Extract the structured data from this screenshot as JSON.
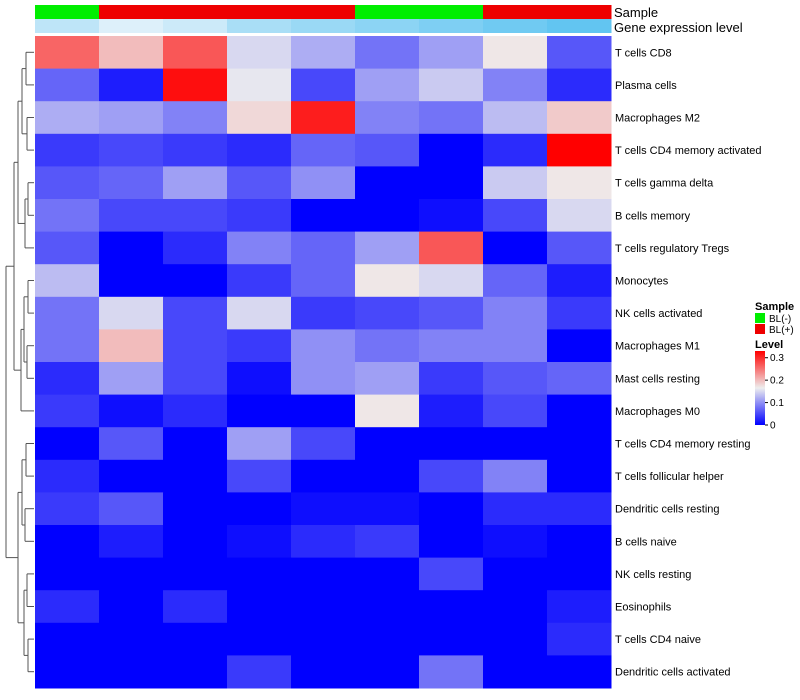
{
  "chart_data": {
    "type": "heatmap",
    "annotation_labels": [
      "Sample",
      "Gene expression level"
    ],
    "sample_group": [
      "BL(-)",
      "BL(+)",
      "BL(+)",
      "BL(+)",
      "BL(+)",
      "BL(-)",
      "BL(-)",
      "BL(+)",
      "BL(+)"
    ],
    "expression_level": [
      0.3,
      0.08,
      0.2,
      0.45,
      0.55,
      0.65,
      0.75,
      0.85,
      0.95
    ],
    "rows": [
      "T cells CD8",
      "Plasma cells",
      "Macrophages M2",
      "T cells CD4 memory activated",
      "T cells gamma delta",
      "B cells memory",
      "T cells regulatory  Tregs",
      "Monocytes",
      "NK cells activated",
      "Macrophages M1",
      "Mast cells resting",
      "Macrophages M0",
      "T cells CD4 memory resting",
      "T cells follicular helper",
      "Dendritic cells resting",
      "B cells naive",
      "NK cells resting",
      "Eosinophils",
      "T cells CD4 naive",
      "Dendritic cells activated"
    ],
    "values": [
      [
        0.26,
        0.2,
        0.27,
        0.15,
        0.12,
        0.08,
        0.11,
        0.17,
        0.06
      ],
      [
        0.07,
        0.02,
        0.32,
        0.16,
        0.05,
        0.11,
        0.14,
        0.09,
        0.03
      ],
      [
        0.12,
        0.11,
        0.09,
        0.18,
        0.31,
        0.09,
        0.08,
        0.13,
        0.19
      ],
      [
        0.04,
        0.05,
        0.04,
        0.03,
        0.07,
        0.06,
        0.0,
        0.03,
        0.33
      ],
      [
        0.06,
        0.07,
        0.11,
        0.06,
        0.1,
        0.0,
        0.0,
        0.14,
        0.17
      ],
      [
        0.08,
        0.05,
        0.05,
        0.04,
        0.0,
        0.0,
        0.01,
        0.05,
        0.15
      ],
      [
        0.06,
        0.0,
        0.03,
        0.09,
        0.07,
        0.11,
        0.27,
        0.0,
        0.06
      ],
      [
        0.13,
        0.0,
        0.0,
        0.04,
        0.07,
        0.17,
        0.15,
        0.07,
        0.02
      ],
      [
        0.08,
        0.15,
        0.05,
        0.15,
        0.04,
        0.05,
        0.06,
        0.09,
        0.04
      ],
      [
        0.08,
        0.2,
        0.05,
        0.04,
        0.1,
        0.08,
        0.09,
        0.09,
        0.0
      ],
      [
        0.03,
        0.11,
        0.05,
        0.01,
        0.1,
        0.11,
        0.04,
        0.06,
        0.07
      ],
      [
        0.04,
        0.01,
        0.03,
        0.0,
        0.0,
        0.17,
        0.02,
        0.05,
        0.0
      ],
      [
        0.0,
        0.06,
        0.0,
        0.11,
        0.05,
        0.0,
        0.0,
        0.0,
        0.0
      ],
      [
        0.03,
        0.0,
        0.0,
        0.05,
        0.0,
        0.0,
        0.05,
        0.09,
        0.0
      ],
      [
        0.04,
        0.06,
        0.0,
        0.0,
        0.01,
        0.01,
        0.0,
        0.03,
        0.03
      ],
      [
        0.0,
        0.02,
        0.0,
        0.01,
        0.03,
        0.04,
        0.0,
        0.01,
        0.0
      ],
      [
        0.0,
        0.0,
        0.0,
        0.0,
        0.0,
        0.0,
        0.05,
        0.0,
        0.0
      ],
      [
        0.03,
        0.0,
        0.03,
        0.0,
        0.0,
        0.0,
        0.0,
        0.0,
        0.02
      ],
      [
        0.0,
        0.0,
        0.0,
        0.0,
        0.0,
        0.0,
        0.0,
        0.0,
        0.03
      ],
      [
        0.0,
        0.0,
        0.0,
        0.04,
        0.0,
        0.0,
        0.08,
        0.0,
        0.0
      ]
    ],
    "color_scale": {
      "min": 0,
      "max": 0.33,
      "colors": [
        "#0000ff",
        "#eeeeee",
        "#ff0000"
      ]
    },
    "legend": {
      "placement": "right",
      "sample": {
        "title": "Sample",
        "entries": [
          {
            "label": "BL(-)",
            "color": "#00ee00"
          },
          {
            "label": "BL(+)",
            "color": "#ee0000"
          }
        ]
      },
      "level": {
        "title": "Level",
        "ticks": [
          "0.3",
          "0.2",
          "0.1",
          "0"
        ],
        "tick_values": [
          0.3,
          0.2,
          0.1,
          0
        ]
      }
    },
    "dendrogram": "rows",
    "grid": false
  },
  "colors": {
    "group_BL(-)": "#00ee00",
    "group_BL(+)": "#ee0000",
    "expression_low": "#e8f4fb",
    "expression_high": "#5bc3f0",
    "dendrogram": "#555555"
  }
}
